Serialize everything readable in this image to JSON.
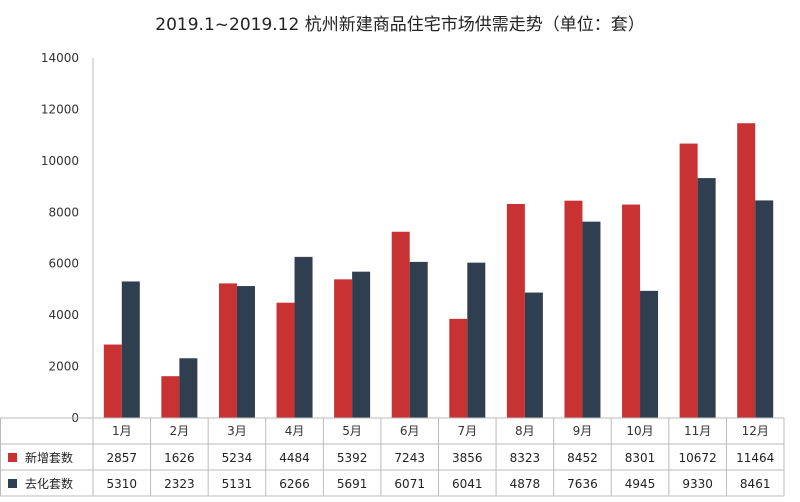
{
  "chart_data": {
    "type": "bar",
    "title": "2019.1~2019.12  杭州新建商品住宅市场供需走势（单位：套）",
    "categories": [
      "1月",
      "2月",
      "3月",
      "4月",
      "5月",
      "6月",
      "7月",
      "8月",
      "9月",
      "10月",
      "11月",
      "12月"
    ],
    "series": [
      {
        "name": "新增套数",
        "color": "#c83232",
        "values": [
          2857,
          1626,
          5234,
          4484,
          5392,
          7243,
          3856,
          8323,
          8452,
          8301,
          10672,
          11464
        ]
      },
      {
        "name": "去化套数",
        "color": "#2f3f4f",
        "values": [
          5310,
          2323,
          5131,
          6266,
          5691,
          6071,
          6041,
          4878,
          7636,
          4945,
          9330,
          8461
        ]
      }
    ],
    "ylim": [
      0,
      14000
    ],
    "yticks": [
      0,
      2000,
      4000,
      6000,
      8000,
      10000,
      12000,
      14000
    ],
    "grid": false,
    "legend": "data table below the chart"
  }
}
